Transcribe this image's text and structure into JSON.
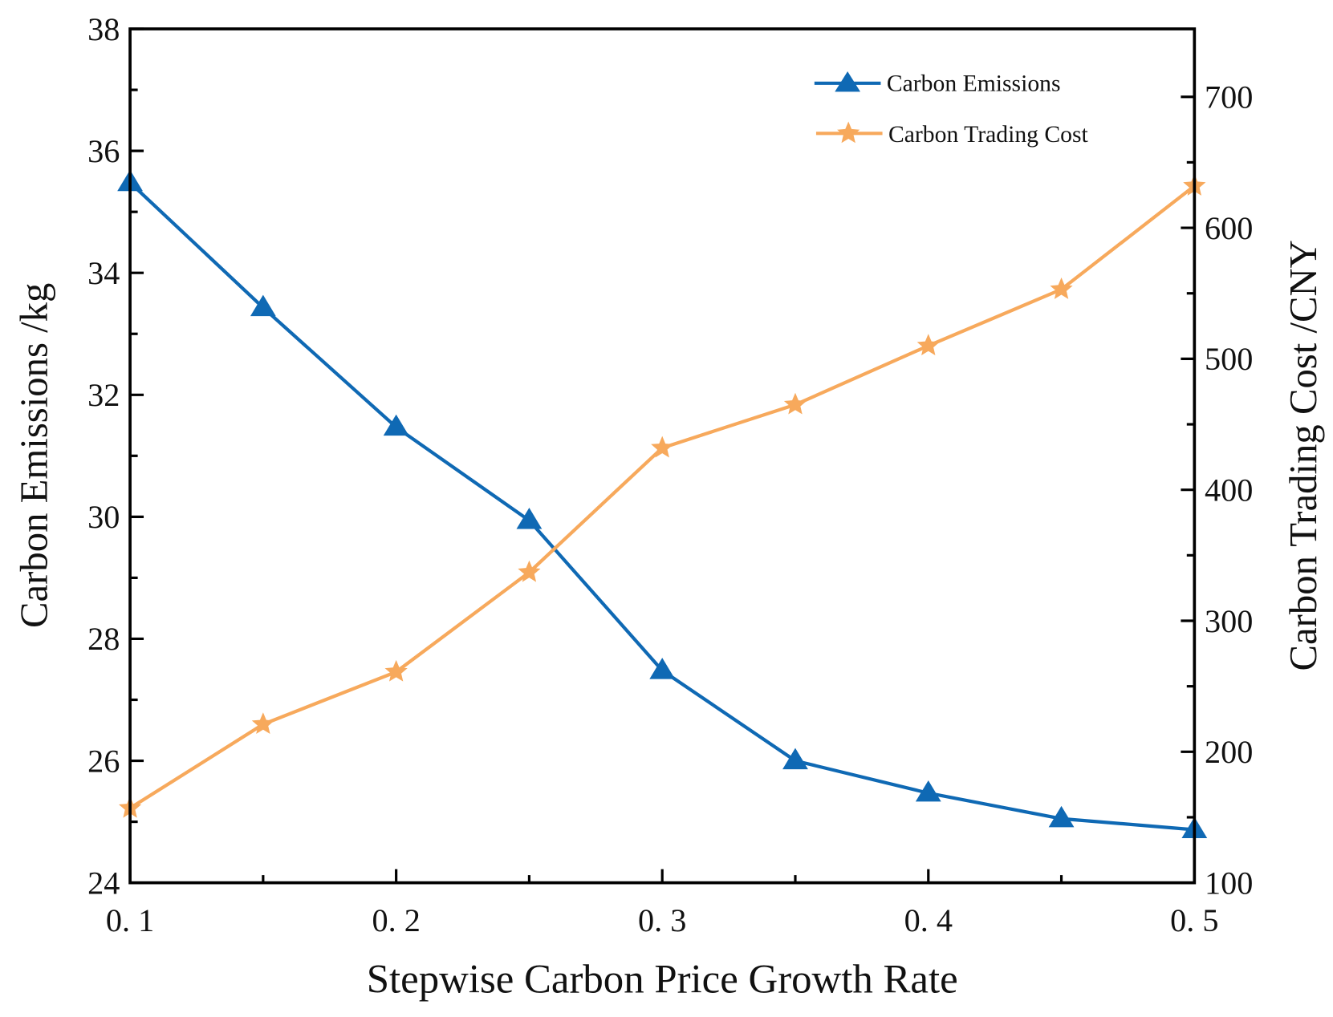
{
  "chart_data": {
    "type": "line",
    "title": "",
    "xlabel": "Stepwise Carbon Price Growth Rate",
    "ylabel": "Carbon Emissions /kg",
    "y2label": "Carbon Trading Cost /CNY",
    "xlim": [
      0.1,
      0.5
    ],
    "ylim": [
      24,
      38
    ],
    "y2lim": [
      100,
      740
    ],
    "x": [
      0.1,
      0.15,
      0.2,
      0.25,
      0.3,
      0.35,
      0.4,
      0.45,
      0.5
    ],
    "x_ticks": [
      0.1,
      0.2,
      0.3,
      0.4,
      0.5
    ],
    "x_tick_labels": [
      "0. 1",
      "0. 2",
      "0. 3",
      "0. 4",
      "0. 5"
    ],
    "y_ticks": [
      24,
      26,
      28,
      30,
      32,
      34,
      36,
      38
    ],
    "y_tick_labels": [
      "24",
      "26",
      "28",
      "30",
      "32",
      "34",
      "36",
      "38"
    ],
    "y2_ticks": [
      100,
      200,
      300,
      400,
      500,
      600,
      700
    ],
    "y2_tick_labels": [
      "100",
      "200",
      "300",
      "400",
      "500",
      "600",
      "700"
    ],
    "grid": false,
    "legend_position": "top-right",
    "series": [
      {
        "name": "Carbon Emissions",
        "axis": "left",
        "marker": "triangle",
        "color": "#0f69b4",
        "values": [
          35.48,
          33.43,
          31.47,
          29.94,
          27.48,
          26.0,
          25.47,
          25.05,
          24.87
        ]
      },
      {
        "name": "Carbon Trading Cost",
        "axis": "right",
        "marker": "star",
        "color": "#f7a95c",
        "values": [
          157,
          221,
          261,
          337,
          432,
          465,
          510,
          553,
          632
        ]
      }
    ]
  }
}
